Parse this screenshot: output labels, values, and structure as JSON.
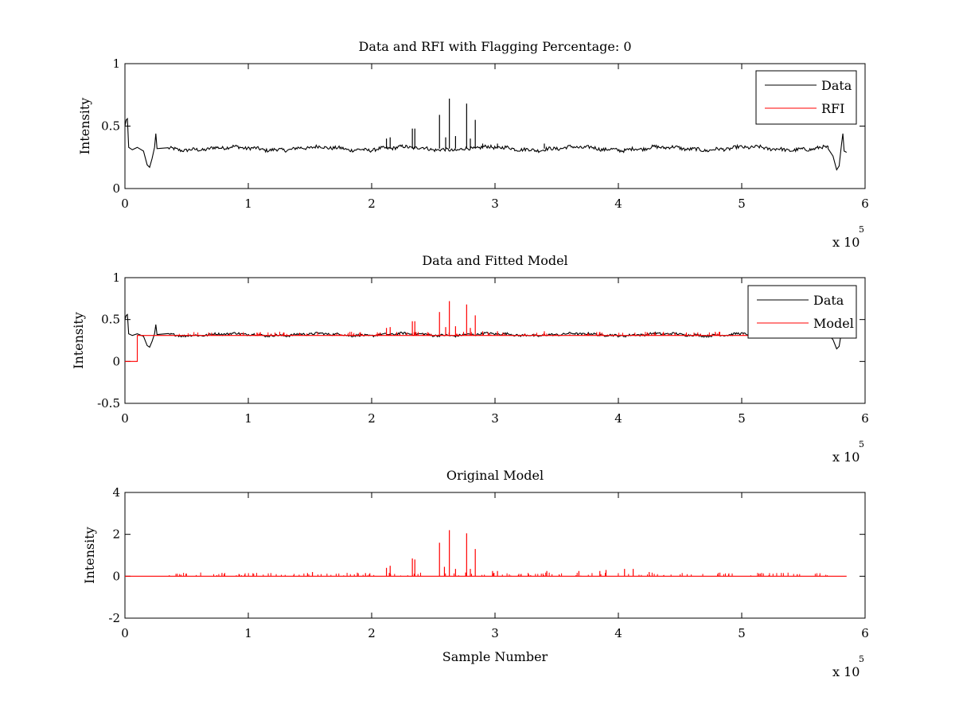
{
  "chart_data": [
    {
      "type": "line",
      "title": "Data and RFI with Flagging Percentage: 0",
      "xlabel": "",
      "ylabel": "Intensity",
      "xlim": [
        0,
        6
      ],
      "ylim": [
        0,
        1
      ],
      "x_ticks": [
        0,
        1,
        2,
        3,
        4,
        5,
        6
      ],
      "y_ticks": [
        0,
        0.5,
        1
      ],
      "x_multiplier_label": "x 10",
      "x_multiplier_exponent": "5",
      "legend_position": "top-right",
      "series": [
        {
          "name": "Data",
          "color": "#000000",
          "baseline": 0.32,
          "points": [
            [
              0.0,
              0.5
            ],
            [
              0.01,
              0.55
            ],
            [
              0.02,
              0.56
            ],
            [
              0.03,
              0.33
            ],
            [
              0.06,
              0.31
            ],
            [
              0.1,
              0.33
            ],
            [
              0.15,
              0.3
            ],
            [
              0.18,
              0.19
            ],
            [
              0.2,
              0.17
            ],
            [
              0.22,
              0.24
            ],
            [
              0.24,
              0.33
            ],
            [
              0.25,
              0.44
            ],
            [
              0.26,
              0.32
            ],
            [
              0.35,
              0.32
            ],
            [
              5.7,
              0.32
            ],
            [
              5.74,
              0.26
            ],
            [
              5.77,
              0.15
            ],
            [
              5.79,
              0.18
            ],
            [
              5.81,
              0.36
            ],
            [
              5.82,
              0.44
            ],
            [
              5.83,
              0.3
            ],
            [
              5.85,
              0.29
            ]
          ],
          "spikes": [
            [
              2.12,
              0.4
            ],
            [
              2.15,
              0.41
            ],
            [
              2.33,
              0.48
            ],
            [
              2.35,
              0.48
            ],
            [
              2.55,
              0.59
            ],
            [
              2.6,
              0.41
            ],
            [
              2.63,
              0.72
            ],
            [
              2.68,
              0.42
            ],
            [
              2.77,
              0.68
            ],
            [
              2.8,
              0.4
            ],
            [
              2.84,
              0.55
            ],
            [
              2.9,
              0.36
            ],
            [
              3.02,
              0.36
            ],
            [
              3.4,
              0.36
            ]
          ]
        },
        {
          "name": "RFI",
          "color": "#ff0000"
        }
      ]
    },
    {
      "type": "line",
      "title": "Data and Fitted Model",
      "xlabel": "",
      "ylabel": "Intensity",
      "xlim": [
        0,
        6
      ],
      "ylim": [
        -0.5,
        1
      ],
      "x_ticks": [
        0,
        1,
        2,
        3,
        4,
        5,
        6
      ],
      "y_ticks": [
        -0.5,
        0,
        0.5,
        1
      ],
      "x_multiplier_label": "x 10",
      "x_multiplier_exponent": "5",
      "legend_position": "top-right",
      "series": [
        {
          "name": "Data",
          "color": "#000000",
          "baseline": 0.32,
          "points": [
            [
              0.0,
              0.5
            ],
            [
              0.01,
              0.55
            ],
            [
              0.02,
              0.56
            ],
            [
              0.03,
              0.33
            ],
            [
              0.06,
              0.31
            ],
            [
              0.1,
              0.33
            ],
            [
              0.15,
              0.3
            ],
            [
              0.18,
              0.19
            ],
            [
              0.2,
              0.17
            ],
            [
              0.22,
              0.24
            ],
            [
              0.24,
              0.33
            ],
            [
              0.25,
              0.44
            ],
            [
              0.26,
              0.32
            ],
            [
              0.35,
              0.32
            ],
            [
              5.7,
              0.32
            ],
            [
              5.74,
              0.26
            ],
            [
              5.77,
              0.15
            ],
            [
              5.79,
              0.18
            ],
            [
              5.81,
              0.36
            ],
            [
              5.82,
              0.44
            ],
            [
              5.83,
              0.3
            ],
            [
              5.85,
              0.29
            ]
          ]
        },
        {
          "name": "Model",
          "color": "#ff0000",
          "baseline": 0.31,
          "points": [
            [
              0.0,
              0.0
            ],
            [
              0.1,
              0.0
            ],
            [
              0.1,
              0.31
            ],
            [
              5.85,
              0.31
            ]
          ],
          "spikes": [
            [
              2.12,
              0.4
            ],
            [
              2.15,
              0.41
            ],
            [
              2.33,
              0.48
            ],
            [
              2.35,
              0.48
            ],
            [
              2.55,
              0.59
            ],
            [
              2.6,
              0.41
            ],
            [
              2.63,
              0.72
            ],
            [
              2.68,
              0.42
            ],
            [
              2.77,
              0.68
            ],
            [
              2.8,
              0.4
            ],
            [
              2.84,
              0.55
            ],
            [
              2.9,
              0.36
            ],
            [
              3.02,
              0.36
            ],
            [
              3.4,
              0.36
            ]
          ]
        }
      ]
    },
    {
      "type": "line",
      "title": "Original Model",
      "xlabel": "Sample Number",
      "ylabel": "Intensity",
      "xlim": [
        0,
        6
      ],
      "ylim": [
        -2,
        4
      ],
      "x_ticks": [
        0,
        1,
        2,
        3,
        4,
        5,
        6
      ],
      "y_ticks": [
        -2,
        0,
        2,
        4
      ],
      "x_multiplier_label": "x 10",
      "x_multiplier_exponent": "5",
      "series": [
        {
          "name": "",
          "color": "#ff0000",
          "baseline": 0.0,
          "points": [
            [
              0.0,
              0.0
            ],
            [
              5.85,
              0.0
            ]
          ],
          "spikes": [
            [
              1.48,
              0.15
            ],
            [
              1.52,
              0.2
            ],
            [
              1.95,
              0.15
            ],
            [
              2.12,
              0.4
            ],
            [
              2.15,
              0.5
            ],
            [
              2.33,
              0.85
            ],
            [
              2.35,
              0.8
            ],
            [
              2.55,
              1.6
            ],
            [
              2.59,
              0.45
            ],
            [
              2.63,
              2.2
            ],
            [
              2.68,
              0.35
            ],
            [
              2.77,
              2.05
            ],
            [
              2.8,
              0.35
            ],
            [
              2.84,
              1.3
            ],
            [
              2.98,
              0.25
            ],
            [
              3.02,
              0.25
            ],
            [
              3.42,
              0.25
            ],
            [
              3.68,
              0.25
            ],
            [
              3.85,
              0.25
            ],
            [
              3.9,
              0.3
            ],
            [
              4.05,
              0.35
            ],
            [
              4.12,
              0.35
            ],
            [
              4.25,
              0.2
            ],
            [
              5.45,
              0.1
            ]
          ]
        }
      ]
    }
  ]
}
